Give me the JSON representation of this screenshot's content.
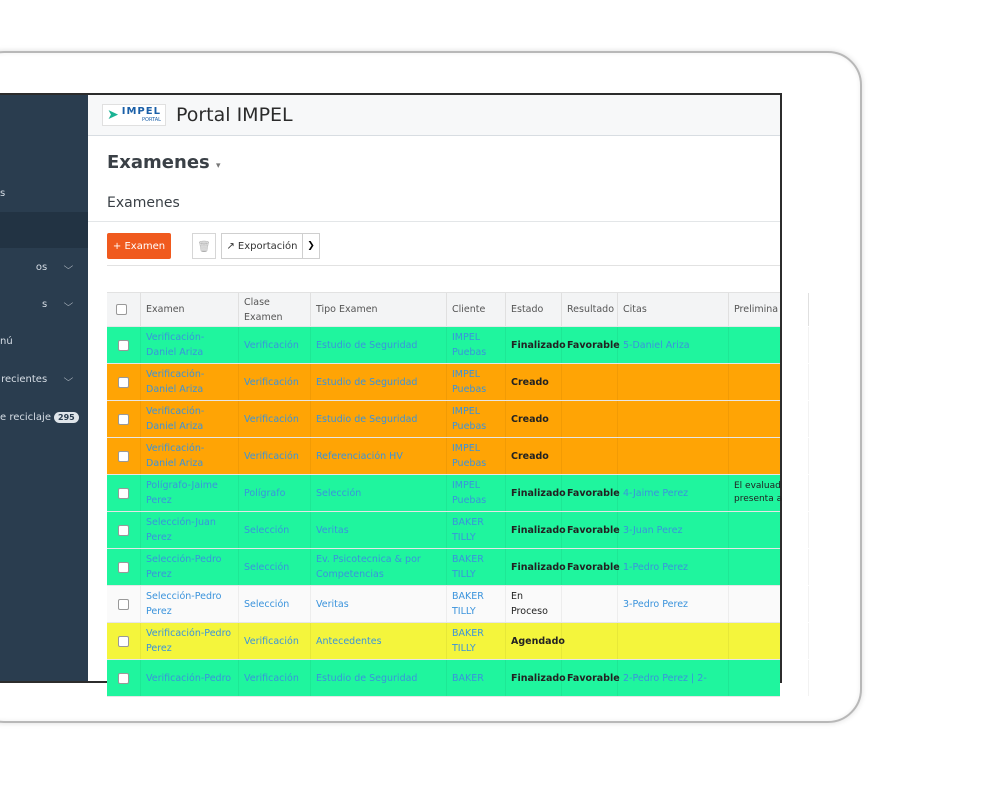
{
  "header": {
    "logo": {
      "name": "IMPEL",
      "sub": "PORTAL"
    },
    "title": "Portal IMPEL"
  },
  "sidebar": {
    "items": [
      {
        "label": "s"
      },
      {
        "label": "os",
        "chevron": true
      },
      {
        "label": "s",
        "chevron": true
      },
      {
        "label": "nú"
      },
      {
        "label": "recientes",
        "chevron": true
      },
      {
        "label": "e reciclaje",
        "badge": 295
      }
    ]
  },
  "page": {
    "title": "Examenes",
    "subtitle": "Examenes"
  },
  "toolbar": {
    "add": "+ Examen",
    "export": "Exportación"
  },
  "table": {
    "columns": [
      "Examen",
      "Clase Examen",
      "Tipo Examen",
      "Cliente",
      "Estado",
      "Resultado",
      "Citas",
      "Prelimina"
    ],
    "rows": [
      {
        "color": "#1ff59e",
        "examen": "Verificación-Daniel Ariza",
        "clase": "Verificación",
        "tipo": "Estudio de Seguridad",
        "cliente": "IMPEL Puebas",
        "estado": "Finalizado",
        "resultado": "Favorable",
        "citas": "5-Daniel Ariza"
      },
      {
        "color": "#ffa405",
        "examen": "Verificación-Daniel Ariza",
        "clase": "Verificación",
        "tipo": "Estudio de Seguridad",
        "cliente": "IMPEL Puebas",
        "estado": "Creado"
      },
      {
        "color": "#ffa405",
        "examen": "Verificación-Daniel Ariza",
        "clase": "Verificación",
        "tipo": "Estudio de Seguridad",
        "cliente": "IMPEL Puebas",
        "estado": "Creado"
      },
      {
        "color": "#ffa405",
        "examen": "Verificación-Daniel Ariza",
        "clase": "Verificación",
        "tipo": "Referenciación HV",
        "cliente": "IMPEL Puebas",
        "estado": "Creado"
      },
      {
        "color": "#1ff59e",
        "examen": "Polígrafo-Jaime Perez",
        "clase": "Polígrafo",
        "tipo": "Selección",
        "cliente": "IMPEL Puebas",
        "estado": "Finalizado",
        "resultado": "Favorable",
        "citas": "4-Jaime Perez",
        "preliminar": "El evaluad presenta a"
      },
      {
        "color": "#1ff59e",
        "examen": "Selección-Juan Perez",
        "clase": "Selección",
        "tipo": "Veritas",
        "cliente": "BAKER TILLY",
        "estado": "Finalizado",
        "resultado": "Favorable",
        "citas": "3-Juan Perez"
      },
      {
        "color": "#1ff59e",
        "examen": "Selección-Pedro Perez",
        "clase": "Selección",
        "tipo": "Ev. Psicotecnica & por Competencias",
        "cliente": "BAKER TILLY",
        "estado": "Finalizado",
        "resultado": "Favorable",
        "citas": "1-Pedro Perez"
      },
      {
        "color": "#fafafa",
        "examen": "Selección-Pedro Perez",
        "clase": "Selección",
        "tipo": "Veritas",
        "cliente": "BAKER TILLY",
        "estado": "En Proceso",
        "citas": "3-Pedro Perez"
      },
      {
        "color": "#f4f53c",
        "examen": "Verificación-Pedro Perez",
        "clase": "Verificación",
        "tipo": "Antecedentes",
        "cliente": "BAKER TILLY",
        "estado": "Agendado"
      },
      {
        "color": "#1ff59e",
        "examen": "Verificación-Pedro",
        "clase": "Verificación",
        "tipo": "Estudio de Seguridad",
        "cliente": "BAKER",
        "estado": "Finalizado",
        "resultado": "Favorable",
        "citas": "2-Pedro Perez | 2-"
      }
    ]
  }
}
